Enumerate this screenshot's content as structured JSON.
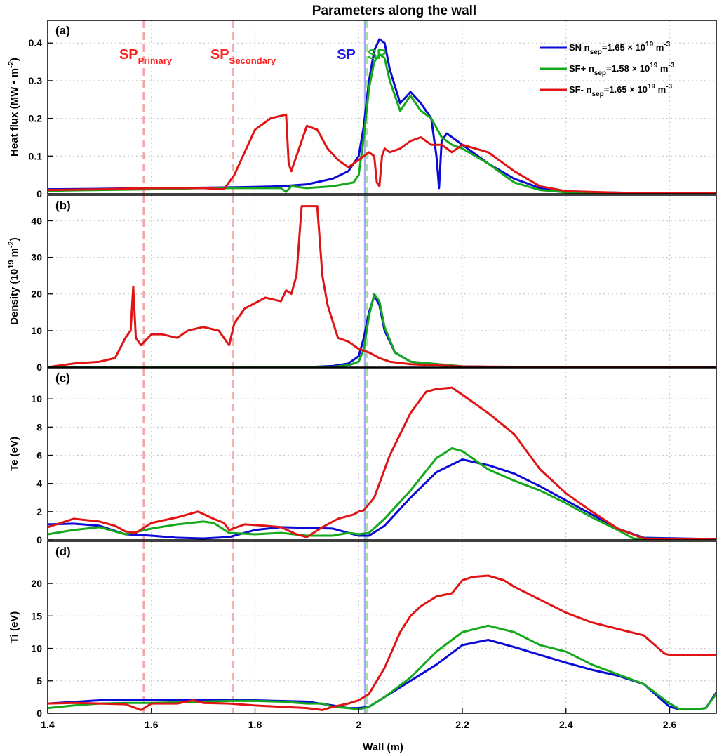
{
  "chart_data": {
    "title": "Parameters along the wall",
    "xlabel": "Wall (m)",
    "xlim": [
      1.4,
      2.69
    ],
    "xticks": [
      1.4,
      1.6,
      1.8,
      2,
      2.2,
      2.4,
      2.6
    ],
    "xtick_labels": [
      "1.4",
      "1.6",
      "1.8",
      "2",
      "2.2",
      "2.4",
      "2.6"
    ],
    "grid": true,
    "legend": {
      "placement": "top-right",
      "entries": [
        {
          "series": "SN",
          "main": "SN n",
          "sub": "sep",
          "mid": "=1.65 × 10",
          "sup": "19",
          "unit": " m",
          "unit_sup": "-3"
        },
        {
          "series": "SF+",
          "main": "SF+ n",
          "sub": "sep",
          "mid": "=1.58 × 10",
          "sup": "19",
          "unit": " m",
          "unit_sup": "-3"
        },
        {
          "series": "SF-",
          "main": "SF- n",
          "sub": "sep",
          "mid": "=1.65 × 10",
          "sup": "19",
          "unit": " m",
          "unit_sup": "-3"
        }
      ]
    },
    "series_colors": {
      "SN": "#0a0ad6",
      "SF+": "#16a81c",
      "SF-": "#e01414"
    },
    "vertical_markers": [
      {
        "x": 1.585,
        "color": "#f4a6a6",
        "style": "dashed"
      },
      {
        "x": 1.758,
        "color": "#f4a6a6",
        "style": "dashed"
      },
      {
        "x": 2.012,
        "color": "#a9a9f4",
        "style": "solid"
      },
      {
        "x": 2.016,
        "color": "#a6dca6",
        "style": "dashed"
      }
    ],
    "annotations": [
      {
        "main": "SP",
        "sub": "Primary",
        "x": 1.538,
        "color": "#ff2020"
      },
      {
        "main": "SP",
        "sub": "Secondary",
        "x": 1.714,
        "color": "#ff2020"
      },
      {
        "main": "SP",
        "sub": "",
        "x": 1.958,
        "color": "#1a1aee"
      },
      {
        "main": "SP",
        "sub": "",
        "x": 2.017,
        "color": "#20b020"
      }
    ],
    "panels": [
      {
        "id": "a",
        "label": "(a)",
        "type": "line",
        "ylabel": {
          "text": "Heat flux (MW • m",
          "sup": "-2",
          "tail": ")"
        },
        "ylim": [
          0,
          0.46
        ],
        "yticks": [
          0,
          0.1,
          0.2,
          0.3,
          0.4
        ],
        "ytick_labels": [
          "0",
          "0.1",
          "0.2",
          "0.3",
          "0.4"
        ],
        "series": [
          {
            "name": "SN",
            "x": [
              1.4,
              1.5,
              1.6,
              1.7,
              1.75,
              1.8,
              1.85,
              1.9,
              1.95,
              1.98,
              2.0,
              2.01,
              2.02,
              2.03,
              2.04,
              2.05,
              2.06,
              2.08,
              2.1,
              2.12,
              2.14,
              2.15,
              2.155,
              2.16,
              2.17,
              2.2,
              2.25,
              2.3,
              2.35,
              2.4,
              2.5,
              2.6,
              2.69
            ],
            "y": [
              0.012,
              0.013,
              0.015,
              0.016,
              0.017,
              0.018,
              0.02,
              0.025,
              0.04,
              0.06,
              0.1,
              0.18,
              0.3,
              0.38,
              0.41,
              0.4,
              0.33,
              0.24,
              0.27,
              0.24,
              0.2,
              0.1,
              0.015,
              0.14,
              0.16,
              0.13,
              0.08,
              0.04,
              0.015,
              0.005,
              0.003,
              0.002,
              0.002
            ]
          },
          {
            "name": "SF+",
            "x": [
              1.4,
              1.5,
              1.6,
              1.7,
              1.75,
              1.8,
              1.85,
              1.86,
              1.87,
              1.9,
              1.95,
              1.99,
              2.0,
              2.01,
              2.02,
              2.03,
              2.04,
              2.05,
              2.06,
              2.08,
              2.1,
              2.12,
              2.14,
              2.16,
              2.18,
              2.2,
              2.25,
              2.3,
              2.35,
              2.4,
              2.5,
              2.6,
              2.69
            ],
            "y": [
              0.008,
              0.01,
              0.012,
              0.015,
              0.015,
              0.015,
              0.015,
              0.005,
              0.02,
              0.015,
              0.02,
              0.03,
              0.05,
              0.15,
              0.28,
              0.35,
              0.37,
              0.36,
              0.3,
              0.22,
              0.26,
              0.22,
              0.2,
              0.15,
              0.13,
              0.12,
              0.08,
              0.03,
              0.01,
              0.004,
              0.003,
              0.002,
              0.002
            ]
          },
          {
            "name": "SF-",
            "x": [
              1.4,
              1.5,
              1.6,
              1.7,
              1.74,
              1.76,
              1.78,
              1.8,
              1.83,
              1.86,
              1.865,
              1.87,
              1.88,
              1.9,
              1.92,
              1.94,
              1.96,
              1.98,
              2.0,
              2.01,
              2.02,
              2.03,
              2.035,
              2.04,
              2.045,
              2.05,
              2.06,
              2.08,
              2.1,
              2.12,
              2.14,
              2.16,
              2.18,
              2.2,
              2.25,
              2.3,
              2.35,
              2.4,
              2.5,
              2.6,
              2.69
            ],
            "y": [
              0.01,
              0.012,
              0.015,
              0.015,
              0.012,
              0.05,
              0.11,
              0.17,
              0.2,
              0.21,
              0.08,
              0.06,
              0.1,
              0.18,
              0.17,
              0.12,
              0.09,
              0.07,
              0.09,
              0.1,
              0.11,
              0.1,
              0.03,
              0.02,
              0.1,
              0.12,
              0.11,
              0.12,
              0.14,
              0.15,
              0.13,
              0.13,
              0.11,
              0.13,
              0.11,
              0.06,
              0.02,
              0.007,
              0.003,
              0.002,
              0.002
            ]
          }
        ]
      },
      {
        "id": "b",
        "label": "(b)",
        "type": "line",
        "ylabel": {
          "text": "Density (10",
          "sup": "19",
          "tail": " m",
          "sup2": "-2",
          "tail2": ")"
        },
        "ylim": [
          0,
          47
        ],
        "yticks": [
          0,
          10,
          20,
          30,
          40
        ],
        "ytick_labels": [
          "0",
          "10",
          "20",
          "30",
          "40"
        ],
        "series": [
          {
            "name": "SN",
            "x": [
              1.4,
              1.8,
              1.9,
              1.95,
              1.98,
              2.0,
              2.01,
              2.02,
              2.03,
              2.04,
              2.05,
              2.07,
              2.1,
              2.2,
              2.3,
              2.69
            ],
            "y": [
              0,
              0,
              0,
              0.3,
              1,
              3,
              8,
              15,
              19.5,
              17,
              10,
              4,
              1.5,
              0.2,
              0,
              0
            ]
          },
          {
            "name": "SF+",
            "x": [
              1.4,
              1.8,
              1.9,
              1.95,
              1.98,
              2.0,
              2.01,
              2.02,
              2.03,
              2.04,
              2.05,
              2.07,
              2.1,
              2.2,
              2.3,
              2.69
            ],
            "y": [
              0,
              0,
              0,
              0.1,
              0.5,
              1.5,
              5,
              14,
              20,
              18,
              11,
              4,
              1.5,
              0.2,
              0,
              0
            ]
          },
          {
            "name": "SF-",
            "x": [
              1.4,
              1.45,
              1.5,
              1.53,
              1.55,
              1.56,
              1.565,
              1.57,
              1.58,
              1.6,
              1.62,
              1.65,
              1.67,
              1.7,
              1.73,
              1.75,
              1.76,
              1.78,
              1.82,
              1.85,
              1.86,
              1.87,
              1.88,
              1.89,
              1.9,
              1.92,
              1.93,
              1.94,
              1.96,
              1.98,
              2.0,
              2.02,
              2.04,
              2.06,
              2.1,
              2.2,
              2.3,
              2.69
            ],
            "y": [
              0,
              1,
              1.5,
              2.5,
              8,
              10,
              22,
              8,
              6,
              9,
              9,
              8,
              10,
              11,
              10,
              6,
              12,
              16,
              19,
              18,
              21,
              20,
              25,
              44,
              44,
              44,
              25,
              17,
              8,
              7,
              5,
              4,
              2.5,
              1.5,
              0.8,
              0.2,
              0.1,
              0.1
            ]
          }
        ]
      },
      {
        "id": "c",
        "label": "(c)",
        "type": "line",
        "ylabel": {
          "text": "Te (eV)"
        },
        "ylim": [
          0,
          12.2
        ],
        "yticks": [
          0,
          2,
          4,
          6,
          8,
          10
        ],
        "ytick_labels": [
          "0",
          "2",
          "4",
          "6",
          "8",
          "10"
        ],
        "series": [
          {
            "name": "SN",
            "x": [
              1.4,
              1.45,
              1.5,
              1.55,
              1.6,
              1.65,
              1.7,
              1.75,
              1.8,
              1.85,
              1.9,
              1.95,
              1.98,
              2.0,
              2.02,
              2.05,
              2.1,
              2.15,
              2.2,
              2.25,
              2.3,
              2.35,
              2.4,
              2.45,
              2.5,
              2.55,
              2.69
            ],
            "y": [
              1.1,
              1.15,
              1.0,
              0.4,
              0.3,
              0.15,
              0.1,
              0.2,
              0.7,
              0.9,
              0.85,
              0.8,
              0.5,
              0.3,
              0.3,
              1.0,
              3.0,
              4.8,
              5.7,
              5.3,
              4.7,
              3.8,
              2.8,
              1.8,
              0.8,
              0.15,
              0.05
            ]
          },
          {
            "name": "SF+",
            "x": [
              1.4,
              1.45,
              1.5,
              1.55,
              1.6,
              1.65,
              1.7,
              1.72,
              1.75,
              1.8,
              1.85,
              1.9,
              1.95,
              1.98,
              2.0,
              2.02,
              2.05,
              2.1,
              2.15,
              2.18,
              2.2,
              2.25,
              2.3,
              2.35,
              2.4,
              2.45,
              2.5,
              2.53,
              2.69
            ],
            "y": [
              0.4,
              0.7,
              0.9,
              0.4,
              0.8,
              1.1,
              1.3,
              1.2,
              0.5,
              0.4,
              0.5,
              0.3,
              0.3,
              0.5,
              0.4,
              0.5,
              1.5,
              3.5,
              5.8,
              6.5,
              6.3,
              5.0,
              4.2,
              3.5,
              2.6,
              1.6,
              0.7,
              0.1,
              0.05
            ]
          },
          {
            "name": "SF-",
            "x": [
              1.4,
              1.45,
              1.5,
              1.53,
              1.55,
              1.57,
              1.6,
              1.65,
              1.69,
              1.72,
              1.74,
              1.75,
              1.78,
              1.82,
              1.85,
              1.88,
              1.9,
              1.93,
              1.96,
              1.99,
              2.0,
              2.01,
              2.03,
              2.06,
              2.1,
              2.13,
              2.15,
              2.18,
              2.2,
              2.25,
              2.3,
              2.35,
              2.4,
              2.45,
              2.5,
              2.55,
              2.58,
              2.69
            ],
            "y": [
              0.9,
              1.5,
              1.3,
              1.0,
              0.6,
              0.5,
              1.2,
              1.6,
              2.0,
              1.5,
              1.2,
              0.7,
              1.1,
              1.0,
              0.9,
              0.4,
              0.2,
              0.9,
              1.5,
              1.8,
              2.0,
              2.1,
              3.0,
              6.0,
              9.0,
              10.5,
              10.7,
              10.8,
              10.3,
              9.0,
              7.5,
              5.0,
              3.3,
              2.0,
              0.8,
              0.1,
              0.05,
              0.05
            ]
          }
        ]
      },
      {
        "id": "d",
        "label": "(d)",
        "type": "line",
        "ylabel": {
          "text": "Ti (eV)"
        },
        "ylim": [
          0,
          26.5
        ],
        "yticks": [
          0,
          5,
          10,
          15,
          20
        ],
        "ytick_labels": [
          "0",
          "5",
          "10",
          "15",
          "20"
        ],
        "series": [
          {
            "name": "SN",
            "x": [
              1.4,
              1.5,
              1.6,
              1.7,
              1.8,
              1.9,
              1.95,
              1.98,
              2.0,
              2.02,
              2.05,
              2.1,
              2.15,
              2.2,
              2.25,
              2.3,
              2.35,
              2.4,
              2.45,
              2.5,
              2.55,
              2.6,
              2.62,
              2.65,
              2.67,
              2.69
            ],
            "y": [
              1.5,
              2.0,
              2.1,
              2.0,
              2.0,
              1.8,
              1.2,
              0.8,
              0.8,
              1.0,
              2.5,
              5.0,
              7.5,
              10.5,
              11.3,
              10.2,
              9.0,
              7.8,
              6.7,
              5.8,
              4.5,
              1.0,
              0.6,
              0.6,
              0.8,
              3.2
            ]
          },
          {
            "name": "SF+",
            "x": [
              1.4,
              1.45,
              1.5,
              1.55,
              1.6,
              1.65,
              1.7,
              1.75,
              1.8,
              1.85,
              1.9,
              1.93,
              1.95,
              1.98,
              2.0,
              2.02,
              2.05,
              2.1,
              2.15,
              2.2,
              2.25,
              2.3,
              2.35,
              2.4,
              2.45,
              2.5,
              2.55,
              2.6,
              2.62,
              2.65,
              2.67,
              2.69
            ],
            "y": [
              0.8,
              1.2,
              1.5,
              1.6,
              1.6,
              1.7,
              1.8,
              1.9,
              1.9,
              1.8,
              1.5,
              1.5,
              1.0,
              0.8,
              0.6,
              1.0,
              2.5,
              5.5,
              9.5,
              12.5,
              13.5,
              12.5,
              10.5,
              9.5,
              7.5,
              6.0,
              4.5,
              1.5,
              0.6,
              0.6,
              0.8,
              3.0
            ]
          },
          {
            "name": "SF-",
            "x": [
              1.4,
              1.45,
              1.5,
              1.55,
              1.58,
              1.6,
              1.65,
              1.68,
              1.7,
              1.75,
              1.8,
              1.85,
              1.9,
              1.93,
              1.95,
              1.98,
              2.0,
              2.02,
              2.05,
              2.08,
              2.1,
              2.12,
              2.15,
              2.18,
              2.2,
              2.22,
              2.25,
              2.28,
              2.3,
              2.35,
              2.4,
              2.45,
              2.5,
              2.55,
              2.59,
              2.6,
              2.69
            ],
            "y": [
              1.5,
              1.6,
              1.5,
              1.4,
              0.5,
              1.5,
              1.5,
              2.0,
              1.6,
              1.5,
              1.2,
              1.0,
              0.8,
              0.5,
              1.0,
              1.5,
              2.0,
              3.0,
              7.0,
              12.5,
              15.0,
              16.5,
              18.0,
              18.5,
              20.5,
              21.0,
              21.2,
              20.5,
              19.5,
              17.5,
              15.5,
              14.0,
              13.0,
              12.0,
              9.2,
              9.0,
              9.0
            ]
          }
        ]
      }
    ]
  }
}
